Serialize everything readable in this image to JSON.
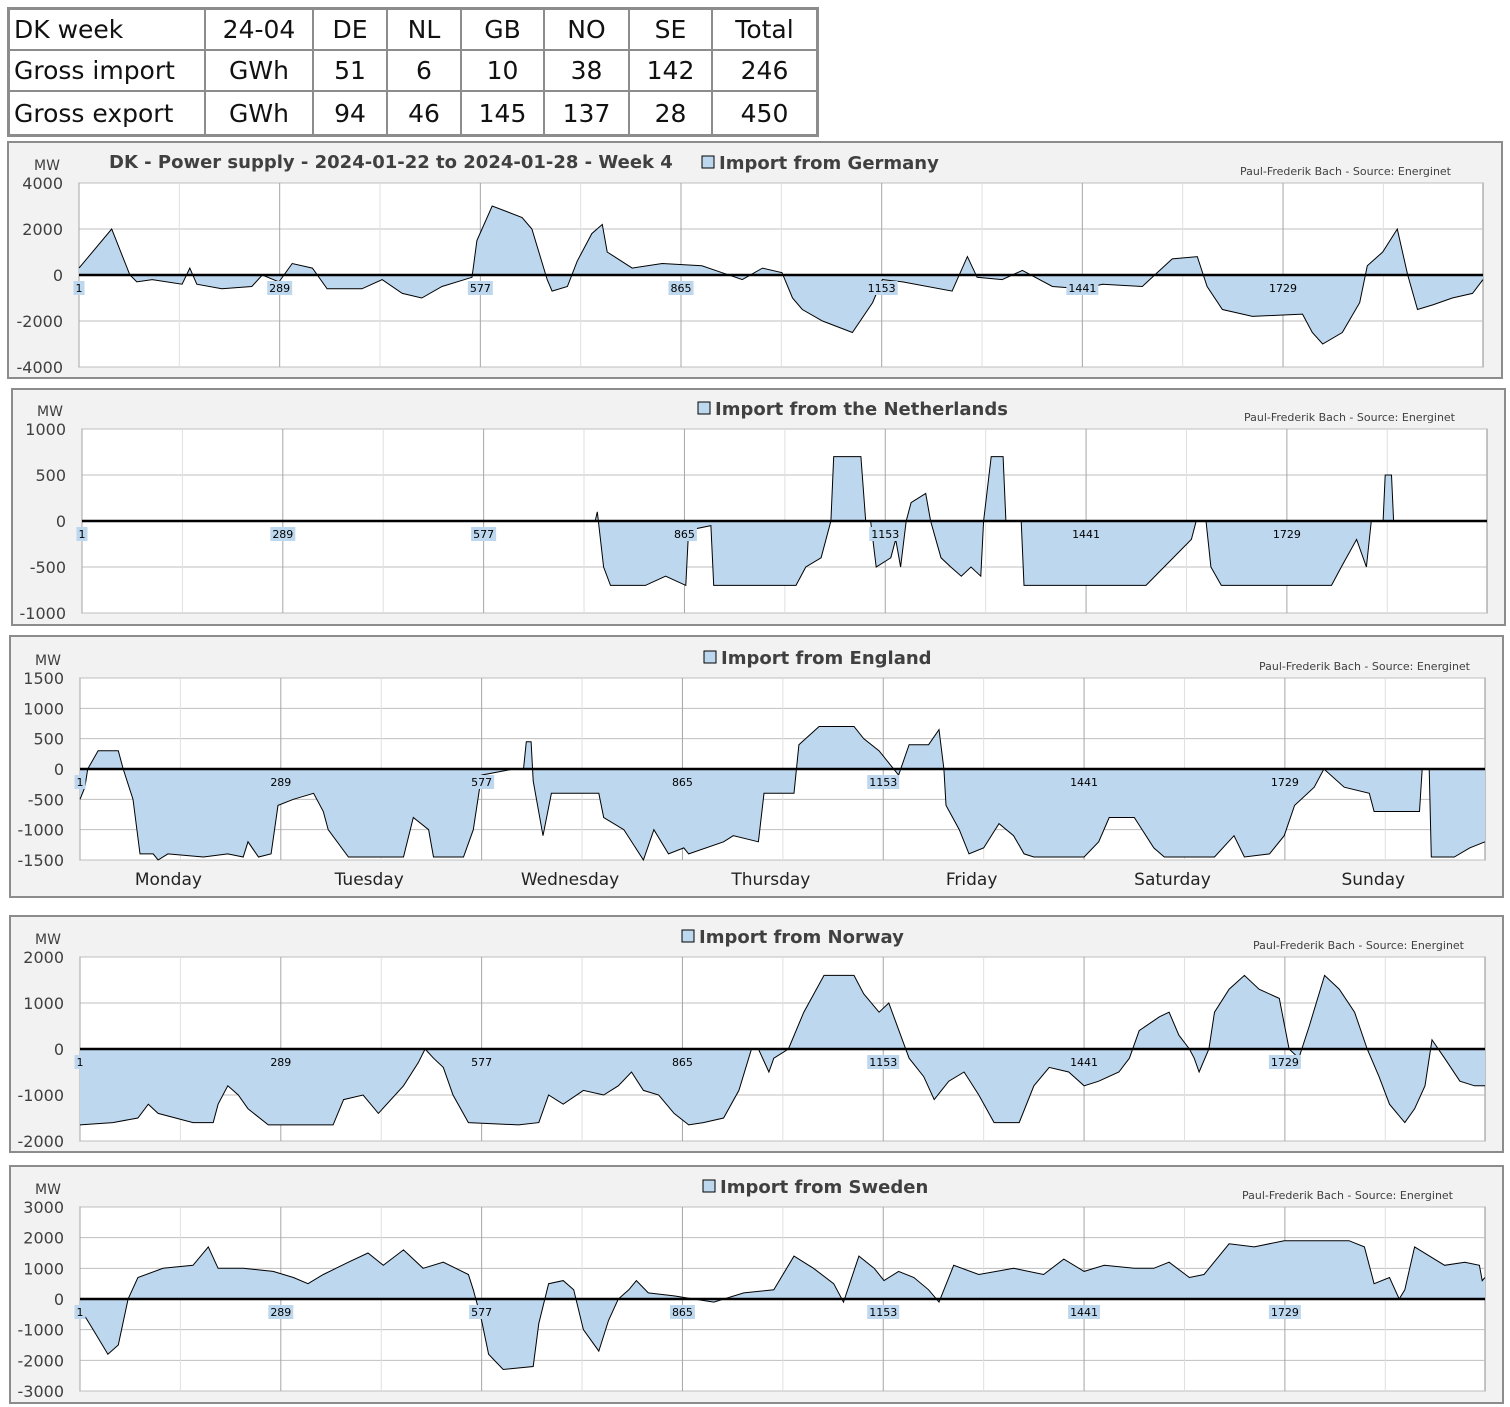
{
  "summary_table": {
    "header": [
      "DK week",
      "24-04",
      "DE",
      "NL",
      "GB",
      "NO",
      "SE",
      "Total"
    ],
    "rows": [
      [
        "Gross import",
        "GWh",
        "51",
        "6",
        "10",
        "38",
        "142",
        "246"
      ],
      [
        "Gross export",
        "GWh",
        "94",
        "46",
        "145",
        "137",
        "28",
        "450"
      ]
    ]
  },
  "colors": {
    "area_fill": "#bdd7ee",
    "line": "#000000",
    "panel_bg": "#f2f2f2",
    "grid": "#a6a6a6"
  },
  "chart_data": [
    {
      "type": "area",
      "title": "DK - Power supply - 2024-01-22 to 2024-01-28 - Week 4",
      "legend": "Import from Germany",
      "credit": "Paul-Frederik Bach - Source: Energinet",
      "ylabel": "MW",
      "ylim": [
        -4000,
        4000
      ],
      "yticks": [
        4000,
        2000,
        0,
        -2000,
        -4000
      ],
      "xlim": [
        1,
        2016
      ],
      "xticks": [
        1,
        289,
        577,
        865,
        1153,
        1441,
        1729
      ],
      "x": [
        1,
        48,
        74,
        84,
        106,
        149,
        160,
        170,
        206,
        249,
        264,
        288,
        307,
        336,
        357,
        407,
        436,
        465,
        493,
        522,
        565,
        572,
        594,
        637,
        651,
        673,
        680,
        702,
        716,
        737,
        752,
        759,
        795,
        838,
        895,
        924,
        953,
        982,
        1010,
        1025,
        1039,
        1068,
        1111,
        1140,
        1154,
        1183,
        1254,
        1276,
        1290,
        1326,
        1355,
        1398,
        1441,
        1470,
        1527,
        1570,
        1606,
        1620,
        1642,
        1685,
        1757,
        1771,
        1786,
        1814,
        1839,
        1850,
        1872,
        1893,
        1908,
        1922,
        1944,
        1972,
        2001,
        2016
      ],
      "y": [
        300,
        2000,
        0,
        -300,
        -200,
        -400,
        300,
        -400,
        -600,
        -500,
        0,
        -300,
        500,
        300,
        -600,
        -600,
        -200,
        -800,
        -1000,
        -500,
        -100,
        1500,
        3000,
        2500,
        2000,
        -200,
        -700,
        -500,
        600,
        1800,
        2200,
        1000,
        300,
        500,
        400,
        100,
        -200,
        300,
        100,
        -1000,
        -1500,
        -2000,
        -2500,
        -1200,
        -200,
        -300,
        -700,
        800,
        -100,
        -200,
        200,
        -500,
        -600,
        -400,
        -500,
        700,
        800,
        -500,
        -1500,
        -1800,
        -1700,
        -2500,
        -3000,
        -2500,
        -1200,
        400,
        1000,
        2000,
        0,
        -1500,
        -1300,
        -1000,
        -800,
        -200
      ]
    },
    {
      "type": "area",
      "legend": "Import from the Netherlands",
      "credit": "Paul-Frederik Bach - Source: Energinet",
      "ylabel": "MW",
      "ylim": [
        -1000,
        1000
      ],
      "yticks": [
        1000,
        500,
        0,
        -500,
        -1000
      ],
      "xlim": [
        1,
        2016
      ],
      "xticks": [
        1,
        289,
        577,
        865,
        1153,
        1441,
        1729
      ],
      "x": [
        1,
        737,
        740,
        749,
        759,
        809,
        838,
        867,
        871,
        903,
        907,
        1025,
        1039,
        1061,
        1075,
        1079,
        1118,
        1125,
        1132,
        1140,
        1161,
        1168,
        1175,
        1183,
        1190,
        1211,
        1218,
        1233,
        1247,
        1262,
        1276,
        1290,
        1294,
        1305,
        1322,
        1326,
        1348,
        1352,
        1470,
        1527,
        1592,
        1599,
        1613,
        1620,
        1635,
        1793,
        1807,
        1829,
        1843,
        1850,
        1867,
        1870,
        1879,
        1882,
        2016
      ],
      "y": [
        0,
        0,
        100,
        -500,
        -700,
        -700,
        -600,
        -700,
        -100,
        -50,
        -700,
        -700,
        -500,
        -400,
        0,
        700,
        700,
        0,
        0,
        -500,
        -400,
        -200,
        -500,
        0,
        200,
        300,
        0,
        -400,
        -500,
        -600,
        -500,
        -600,
        0,
        700,
        700,
        0,
        0,
        -700,
        -700,
        -700,
        -200,
        0,
        0,
        -500,
        -700,
        -700,
        -500,
        -200,
        -500,
        0,
        0,
        500,
        500,
        0,
        0
      ]
    },
    {
      "type": "area",
      "legend": "Import from England",
      "credit": "Paul-Frederik Bach - Source: Energinet",
      "ylabel": "MW",
      "ylim": [
        -1500,
        1500
      ],
      "yticks": [
        1500,
        1000,
        500,
        0,
        -500,
        -1000,
        -1500
      ],
      "xlim": [
        1,
        2016
      ],
      "xticks": [
        1,
        289,
        577,
        865,
        1153,
        1441,
        1729
      ],
      "day_labels": [
        "Monday",
        "Tuesday",
        "Wednesday",
        "Thursday",
        "Friday",
        "Saturday",
        "Sunday"
      ],
      "x": [
        1,
        8,
        12,
        27,
        56,
        63,
        77,
        87,
        106,
        113,
        127,
        178,
        213,
        235,
        242,
        257,
        275,
        285,
        307,
        336,
        350,
        357,
        386,
        465,
        479,
        501,
        508,
        551,
        565,
        577,
        623,
        637,
        641,
        648,
        651,
        665,
        677,
        745,
        752,
        781,
        809,
        824,
        845,
        867,
        874,
        924,
        938,
        974,
        982,
        1025,
        1032,
        1061,
        1111,
        1125,
        1147,
        1161,
        1175,
        1190,
        1218,
        1233,
        1240,
        1243,
        1262,
        1276,
        1297,
        1319,
        1340,
        1355,
        1369,
        1441,
        1462,
        1477,
        1513,
        1541,
        1556,
        1628,
        1656,
        1671,
        1707,
        1728,
        1743,
        1771,
        1785,
        1814,
        1850,
        1857,
        1922,
        1926,
        1936,
        1939,
        1972,
        1994,
        2016
      ],
      "y": [
        -500,
        -300,
        0,
        300,
        300,
        0,
        -500,
        -1400,
        -1400,
        -1500,
        -1400,
        -1450,
        -1400,
        -1450,
        -1200,
        -1450,
        -1400,
        -600,
        -500,
        -400,
        -700,
        -1000,
        -1450,
        -1450,
        -800,
        -1000,
        -1450,
        -1450,
        -1000,
        -100,
        0,
        0,
        450,
        450,
        -200,
        -1100,
        -400,
        -400,
        -800,
        -1000,
        -1500,
        -1000,
        -1400,
        -1300,
        -1400,
        -1200,
        -1100,
        -1200,
        -400,
        -400,
        400,
        700,
        700,
        500,
        300,
        100,
        -100,
        400,
        400,
        650,
        0,
        -600,
        -1000,
        -1400,
        -1300,
        -900,
        -1100,
        -1400,
        -1450,
        -1450,
        -1200,
        -800,
        -800,
        -1300,
        -1450,
        -1450,
        -1100,
        -1450,
        -1400,
        -1100,
        -600,
        -300,
        0,
        -300,
        -400,
        -700,
        -700,
        0,
        0,
        -1450,
        -1450,
        -1300,
        -1200
      ]
    },
    {
      "type": "area",
      "legend": "Import from Norway",
      "credit": "Paul-Frederik Bach - Source: Energinet",
      "ylabel": "MW",
      "ylim": [
        -2000,
        2000
      ],
      "yticks": [
        2000,
        1000,
        0,
        -1000,
        -2000
      ],
      "xlim": [
        1,
        2016
      ],
      "xticks": [
        1,
        289,
        577,
        865,
        1153,
        1441,
        1729
      ],
      "x": [
        1,
        48,
        84,
        99,
        113,
        163,
        192,
        199,
        213,
        228,
        242,
        271,
        364,
        379,
        407,
        429,
        465,
        486,
        496,
        508,
        522,
        536,
        558,
        630,
        659,
        673,
        694,
        723,
        752,
        773,
        792,
        809,
        831,
        853,
        874,
        895,
        924,
        946,
        964,
        974,
        989,
        996,
        1017,
        1039,
        1068,
        1111,
        1125,
        1147,
        1161,
        1190,
        1211,
        1226,
        1247,
        1269,
        1290,
        1312,
        1348,
        1369,
        1391,
        1419,
        1441,
        1462,
        1491,
        1506,
        1520,
        1549,
        1563,
        1577,
        1592,
        1599,
        1606,
        1620,
        1628,
        1649,
        1671,
        1692,
        1721,
        1735,
        1749,
        1764,
        1786,
        1807,
        1829,
        1847,
        1864,
        1879,
        1901,
        1915,
        1930,
        1940,
        1958,
        1980,
        2001,
        2016
      ],
      "y": [
        -1650,
        -1600,
        -1500,
        -1200,
        -1400,
        -1600,
        -1600,
        -1200,
        -800,
        -1000,
        -1300,
        -1650,
        -1650,
        -1100,
        -1000,
        -1400,
        -800,
        -300,
        0,
        -200,
        -400,
        -1000,
        -1600,
        -1650,
        -1600,
        -1000,
        -1200,
        -900,
        -1000,
        -800,
        -500,
        -900,
        -1000,
        -1400,
        -1650,
        -1600,
        -1500,
        -900,
        0,
        0,
        -500,
        -200,
        0,
        800,
        1600,
        1600,
        1200,
        800,
        1000,
        -200,
        -600,
        -1100,
        -700,
        -500,
        -1000,
        -1600,
        -1600,
        -800,
        -400,
        -500,
        -800,
        -700,
        -500,
        -200,
        400,
        700,
        800,
        300,
        0,
        -200,
        -500,
        0,
        800,
        1300,
        1600,
        1300,
        1100,
        0,
        -200,
        500,
        1600,
        1300,
        800,
        0,
        -600,
        -1200,
        -1600,
        -1300,
        -800,
        200,
        -200,
        -700,
        -800,
        -800
      ]
    },
    {
      "type": "area",
      "legend": "Import from Sweden",
      "credit": "Paul-Frederik Bach - Source: Energinet",
      "ylabel": "MW",
      "ylim": [
        -3000,
        3000
      ],
      "yticks": [
        3000,
        2000,
        1000,
        0,
        -1000,
        -2000,
        -3000
      ],
      "xlim": [
        1,
        2016
      ],
      "xticks": [
        1,
        289,
        577,
        865,
        1153,
        1441,
        1729
      ],
      "x": [
        1,
        20,
        41,
        56,
        70,
        84,
        120,
        163,
        185,
        199,
        235,
        278,
        307,
        328,
        350,
        386,
        414,
        436,
        465,
        493,
        522,
        558,
        565,
        577,
        587,
        608,
        651,
        659,
        673,
        694,
        709,
        723,
        745,
        759,
        773,
        788,
        799,
        816,
        853,
        881,
        910,
        953,
        996,
        1025,
        1053,
        1082,
        1096,
        1118,
        1140,
        1154,
        1175,
        1197,
        1218,
        1233,
        1254,
        1290,
        1340,
        1383,
        1412,
        1441,
        1470,
        1513,
        1541,
        1563,
        1592,
        1613,
        1649,
        1685,
        1728,
        1786,
        1821,
        1843,
        1857,
        1879,
        1893,
        1901,
        1915,
        1958,
        1987,
        2008,
        2012,
        2016
      ],
      "y": [
        -300,
        -1000,
        -1800,
        -1500,
        0,
        700,
        1000,
        1100,
        1700,
        1000,
        1000,
        900,
        700,
        500,
        800,
        1200,
        1500,
        1100,
        1600,
        1000,
        1200,
        800,
        300,
        -700,
        -1800,
        -2300,
        -2200,
        -800,
        500,
        600,
        300,
        -1000,
        -1700,
        -700,
        0,
        300,
        600,
        200,
        100,
        0,
        -100,
        200,
        300,
        1400,
        1000,
        500,
        -100,
        1400,
        1000,
        600,
        900,
        700,
        300,
        -100,
        1100,
        800,
        1000,
        800,
        1300,
        900,
        1100,
        1000,
        1000,
        1200,
        700,
        800,
        1800,
        1700,
        1900,
        1900,
        1900,
        1700,
        500,
        700,
        0,
        300,
        1700,
        1100,
        1200,
        1100,
        600,
        700
      ]
    }
  ]
}
